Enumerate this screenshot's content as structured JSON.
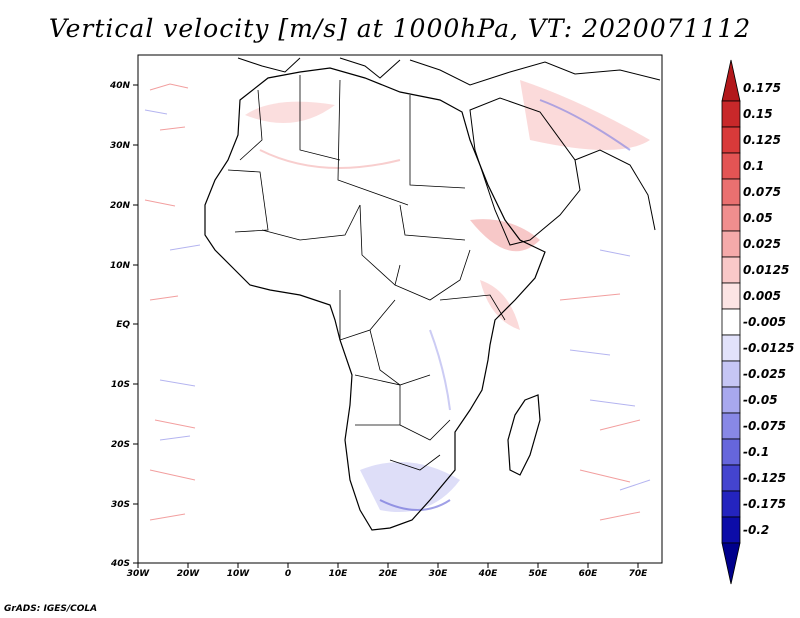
{
  "title": "Vertical velocity [m/s] at 1000hPa, VT: 2020071112",
  "credit": "GrADS: IGES/COLA",
  "map": {
    "lon_range": [
      -30,
      75
    ],
    "lat_range": [
      -40,
      45
    ],
    "lon_ticks": [
      "30W",
      "20W",
      "10W",
      "0",
      "10E",
      "20E",
      "30E",
      "40E",
      "50E",
      "60E",
      "70E"
    ],
    "lat_ticks": [
      "40N",
      "30N",
      "20N",
      "10N",
      "EQ",
      "10S",
      "20S",
      "30S",
      "40S"
    ]
  },
  "colorbar": {
    "labels": [
      "0.175",
      "0.15",
      "0.125",
      "0.1",
      "0.075",
      "0.05",
      "0.025",
      "0.0125",
      "0.005",
      "-0.005",
      "-0.0125",
      "-0.025",
      "-0.05",
      "-0.075",
      "-0.1",
      "-0.125",
      "-0.175",
      "-0.2"
    ],
    "colors": [
      "#b2181b",
      "#c8282a",
      "#d83a3a",
      "#e35454",
      "#ea7070",
      "#f08e8e",
      "#f5aaaa",
      "#f9c8c8",
      "#fce4e4",
      "#ffffff",
      "#e2e2fb",
      "#c6c6f5",
      "#a8a8ee",
      "#8888e6",
      "#6666dc",
      "#4444cf",
      "#2424bf",
      "#0c0ca8",
      "#00008c"
    ]
  }
}
